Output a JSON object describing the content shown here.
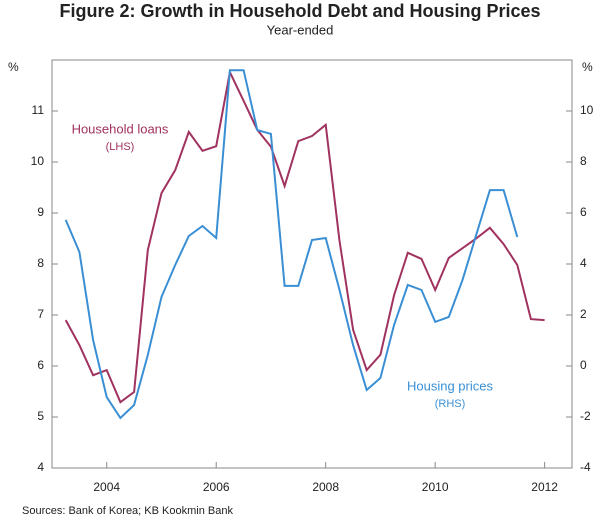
{
  "chart_data": {
    "type": "line",
    "title": "Figure 2: Growth in Household Debt and Housing Prices",
    "subtitle": "Year-ended",
    "y_unit": "%",
    "y2_unit": "%",
    "x": [
      2003.25,
      2003.5,
      2003.75,
      2004,
      2004.25,
      2004.5,
      2004.75,
      2005,
      2005.25,
      2005.5,
      2005.75,
      2006,
      2006.25,
      2006.5,
      2006.75,
      2007,
      2007.25,
      2007.5,
      2007.75,
      2008,
      2008.25,
      2008.5,
      2008.75,
      2009,
      2009.25,
      2009.5,
      2009.75,
      2010,
      2010.25,
      2010.5,
      2010.75,
      2011,
      2011.25,
      2011.5,
      2011.75,
      2012
    ],
    "series": [
      {
        "name": "Household loans",
        "legend_note": "(LHS)",
        "color": "#a0325f",
        "axis": "y",
        "values": [
          6.9,
          6.41,
          5.82,
          5.92,
          5.29,
          5.49,
          8.27,
          9.39,
          9.84,
          10.59,
          10.22,
          10.31,
          11.76,
          11.2,
          10.63,
          10.3,
          9.53,
          10.41,
          10.51,
          10.73,
          8.47,
          6.71,
          5.92,
          6.22,
          7.39,
          8.22,
          8.1,
          7.49,
          8.12,
          8.31,
          8.5,
          8.71,
          8.39,
          7.98,
          6.92,
          6.9
        ]
      },
      {
        "name": "Housing prices",
        "legend_note": "(RHS)",
        "color": "#3a8fd4",
        "axis": "y2",
        "values": [
          5.73,
          4.47,
          1.02,
          -1.22,
          -2.04,
          -1.53,
          0.43,
          2.71,
          3.96,
          5.1,
          5.49,
          5.02,
          11.6,
          11.6,
          9.25,
          9.1,
          3.14,
          3.14,
          4.94,
          5.02,
          3.0,
          0.82,
          -0.94,
          -0.47,
          1.61,
          3.18,
          2.98,
          1.73,
          1.92,
          3.37,
          5.14,
          6.9,
          6.9,
          5.06,
          null,
          null
        ]
      }
    ],
    "xlim": [
      2003,
      2012.5
    ],
    "xticks": [
      2004,
      2006,
      2008,
      2010,
      2012
    ],
    "ylim": [
      4,
      12
    ],
    "yticks": [
      4,
      5,
      6,
      7,
      8,
      9,
      10,
      11
    ],
    "y2lim": [
      -4,
      12
    ],
    "y2ticks": [
      -4,
      -2,
      0,
      2,
      4,
      6,
      8,
      10
    ],
    "source": "Sources:    Bank of Korea; KB Kookmin Bank"
  }
}
